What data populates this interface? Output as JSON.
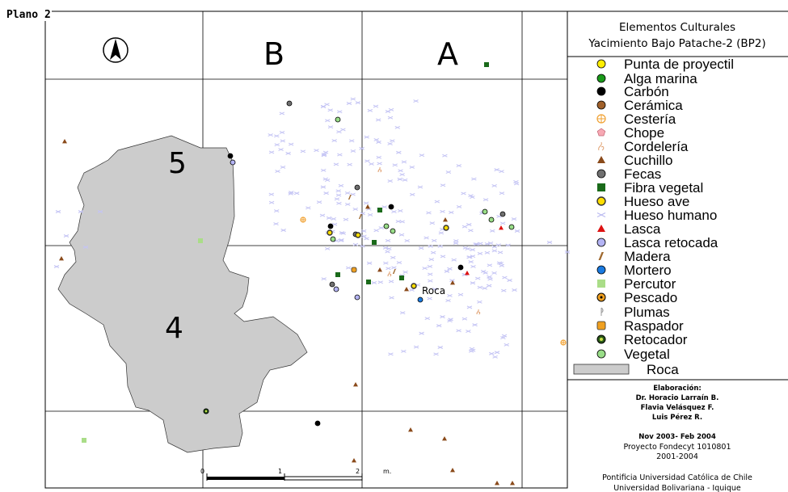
{
  "plan_label": "Plano 2",
  "grid_labels": {
    "b": "B",
    "a": "A"
  },
  "sector_labels": {
    "s5": "5",
    "s4": "4"
  },
  "rock_label": "Roca",
  "scale": {
    "zero": "0",
    "one": "1",
    "two": "2",
    "unit": "m."
  },
  "legend": {
    "title_line1": "Elementos  Culturales",
    "title_line2": "Yacimiento  Bajo Patache-2 (BP2)",
    "items": [
      {
        "label": "Punta de  proyectil",
        "icon": "yellow-circle",
        "color": "#ffee00"
      },
      {
        "label": "Alga marina",
        "icon": "green-circle",
        "color": "#1a9a1a"
      },
      {
        "label": "Carbón",
        "icon": "black-circle",
        "color": "#000000"
      },
      {
        "label": "Cerámica",
        "icon": "brown-circle",
        "color": "#a0602a"
      },
      {
        "label": "Cestería",
        "icon": "orange-crosshair-circle",
        "color": "#f0a030"
      },
      {
        "label": "Chope",
        "icon": "pink-pentagon",
        "color": "#f7a9b4"
      },
      {
        "label": "Cordelería",
        "icon": "rope-squiggle",
        "color": "#e0a070"
      },
      {
        "label": "Cuchillo",
        "icon": "brown-triangle",
        "color": "#8a4a1a"
      },
      {
        "label": "Fecas",
        "icon": "gray-circle",
        "color": "#707070"
      },
      {
        "label": "Fibra vegetal",
        "icon": "green-square",
        "color": "#1a6a1a"
      },
      {
        "label": "Hueso ave",
        "icon": "yellow-ringed-circle",
        "color": "#ffdd00"
      },
      {
        "label": "Hueso humano",
        "icon": "lilac-cross",
        "color": "#b8b8f0"
      },
      {
        "label": "Lasca",
        "icon": "red-triangle",
        "color": "#dd1111"
      },
      {
        "label": "Lasca retocada",
        "icon": "lavender-circle",
        "color": "#b4b4f4"
      },
      {
        "label": "Madera",
        "icon": "brown-slash",
        "color": "#a06a30"
      },
      {
        "label": "Mortero",
        "icon": "blue-circle",
        "color": "#1a7ae0"
      },
      {
        "label": "Percutor",
        "icon": "lightgreen-square",
        "color": "#aadd88"
      },
      {
        "label": "Pescado",
        "icon": "orange-dot-circle",
        "color": "#f0a020"
      },
      {
        "label": "Plumas",
        "icon": "feather",
        "color": "#9a9a9a"
      },
      {
        "label": "Raspador",
        "icon": "orange-rounded-square",
        "color": "#f0a020"
      },
      {
        "label": "Retocador",
        "icon": "darkgreen-target-circle",
        "color": "#2a5a1a"
      },
      {
        "label": "Vegetal",
        "icon": "lightgreen-circle",
        "color": "#99dd88"
      },
      {
        "label": "Roca",
        "icon": "gray-rock-rectangle",
        "color": "#cccccc"
      }
    ]
  },
  "credits": {
    "heading": "Elaboración:",
    "authors": [
      "Dr. Horacio Larraín B.",
      "Flavia Velásquez F.",
      "Luis Pérez R."
    ],
    "dates": "Nov 2003- Feb 2004",
    "project": "Proyecto Fondecyt 1010801",
    "years": "2001-2004",
    "institution1": "Pontificia Universidad Católica de Chile",
    "institution2": "Universidad Bolivariana - Iquique"
  },
  "colors": {
    "rock_fill": "#cccccc",
    "hueso_humano": "#c4c4f4",
    "grid": "#000000"
  }
}
